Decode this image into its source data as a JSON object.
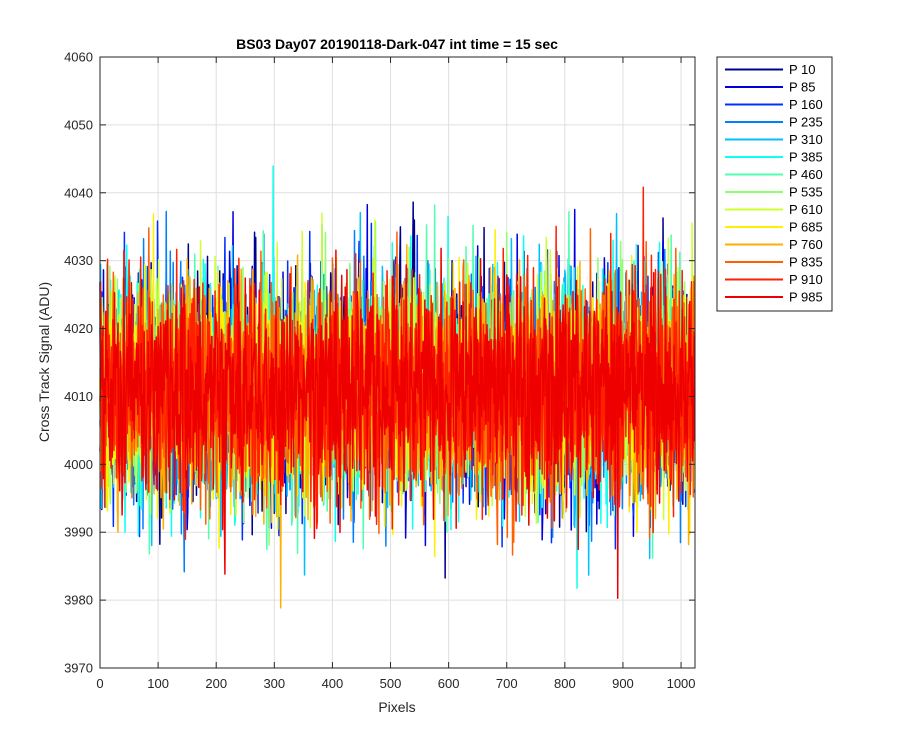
{
  "chart_data": {
    "type": "line",
    "title": "BS03 Day07 20190118-Dark-047 int time = 15 sec",
    "xlabel": "Pixels",
    "ylabel": "Cross Track Signal (ADU)",
    "xlim": [
      0,
      1024
    ],
    "ylim": [
      3970,
      4060
    ],
    "xticks": [
      0,
      100,
      200,
      300,
      400,
      500,
      600,
      700,
      800,
      900,
      1000
    ],
    "yticks": [
      3970,
      3980,
      3990,
      4000,
      4010,
      4020,
      4030,
      4040,
      4050,
      4060
    ],
    "grid": true,
    "legend_position": "outside-top-right",
    "noise_model": {
      "n_points": 1024,
      "mean": 4011,
      "std": 8,
      "min": 3977,
      "max": 4056
    },
    "series": [
      {
        "name": "P 10",
        "color": "#00008f",
        "seed": 11
      },
      {
        "name": "P 85",
        "color": "#0000df",
        "seed": 23
      },
      {
        "name": "P 160",
        "color": "#0030ff",
        "seed": 37
      },
      {
        "name": "P 235",
        "color": "#0080ff",
        "seed": 41
      },
      {
        "name": "P 310",
        "color": "#00bfff",
        "seed": 53
      },
      {
        "name": "P 385",
        "color": "#10ffef",
        "seed": 67
      },
      {
        "name": "P 460",
        "color": "#50ffaf",
        "seed": 71
      },
      {
        "name": "P 535",
        "color": "#8fff70",
        "seed": 83
      },
      {
        "name": "P 610",
        "color": "#cfff30",
        "seed": 97
      },
      {
        "name": "P 685",
        "color": "#ffef00",
        "seed": 101
      },
      {
        "name": "P 760",
        "color": "#ffaf00",
        "seed": 113
      },
      {
        "name": "P 835",
        "color": "#ff6000",
        "seed": 127
      },
      {
        "name": "P 910",
        "color": "#ff2000",
        "seed": 131
      },
      {
        "name": "P 985",
        "color": "#ef0000",
        "seed": 139
      }
    ]
  }
}
